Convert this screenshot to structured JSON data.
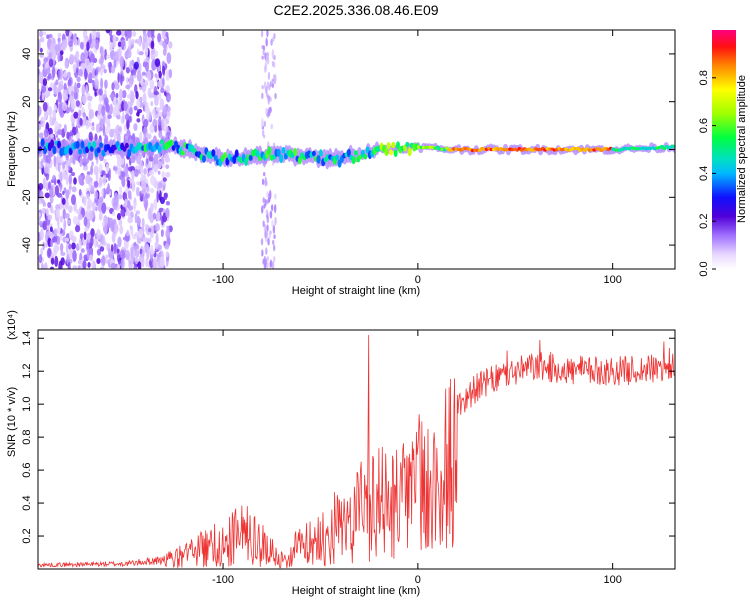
{
  "title": "C2E2.2025.336.08.46.E09",
  "chart_data": [
    {
      "type": "heatmap",
      "xlabel": "Height of straight line (km)",
      "ylabel": "Frequency (Hz)",
      "xlim": [
        -195,
        132
      ],
      "ylim": [
        -50,
        50
      ],
      "xticks": [
        -100,
        0,
        100
      ],
      "yticks": [
        -40,
        -20,
        0,
        20,
        40
      ],
      "colorbar": {
        "label": "Normalized spectral amplitude",
        "range": [
          0,
          1
        ],
        "ticks": [
          "0.0",
          "0.2",
          "0.4",
          "0.6",
          "0.8"
        ]
      },
      "ridge": [
        {
          "x": -190,
          "f": 1
        },
        {
          "x": -150,
          "f": 0
        },
        {
          "x": -130,
          "f": 2
        },
        {
          "x": -100,
          "f": -4
        },
        {
          "x": -70,
          "f": -2
        },
        {
          "x": -40,
          "f": -4
        },
        {
          "x": -20,
          "f": 0
        },
        {
          "x": 0,
          "f": 1
        },
        {
          "x": 20,
          "f": 0
        },
        {
          "x": 100,
          "f": 0
        },
        {
          "x": 132,
          "f": 1
        }
      ]
    },
    {
      "type": "line",
      "xlabel": "Height of straight line (km)",
      "ylabel": "SNR (10 * v/v)",
      "y_multiplier": "(x10⁴)",
      "xlim": [
        -195,
        132
      ],
      "ylim": [
        0,
        1.45
      ],
      "xticks": [
        -100,
        0,
        100
      ],
      "yticks": [
        0.2,
        0.4,
        0.6,
        0.8,
        1.0,
        1.2,
        1.4
      ],
      "series": [
        {
          "name": "SNR",
          "color": "#ee3333",
          "envelope": [
            {
              "x": -195,
              "y": 0.03
            },
            {
              "x": -150,
              "y": 0.04
            },
            {
              "x": -130,
              "y": 0.07
            },
            {
              "x": -115,
              "y": 0.15
            },
            {
              "x": -100,
              "y": 0.25
            },
            {
              "x": -90,
              "y": 0.32
            },
            {
              "x": -80,
              "y": 0.22
            },
            {
              "x": -70,
              "y": 0.08
            },
            {
              "x": -60,
              "y": 0.22
            },
            {
              "x": -50,
              "y": 0.28
            },
            {
              "x": -40,
              "y": 0.4
            },
            {
              "x": -30,
              "y": 0.55
            },
            {
              "x": -25,
              "y": 0.65
            },
            {
              "x": -15,
              "y": 0.55
            },
            {
              "x": -10,
              "y": 0.6
            },
            {
              "x": 0,
              "y": 0.72
            },
            {
              "x": 10,
              "y": 0.82
            },
            {
              "x": 20,
              "y": 0.98
            },
            {
              "x": 30,
              "y": 1.1
            },
            {
              "x": 45,
              "y": 1.18
            },
            {
              "x": 60,
              "y": 1.23
            },
            {
              "x": 80,
              "y": 1.2
            },
            {
              "x": 100,
              "y": 1.2
            },
            {
              "x": 132,
              "y": 1.22
            }
          ]
        }
      ]
    }
  ]
}
